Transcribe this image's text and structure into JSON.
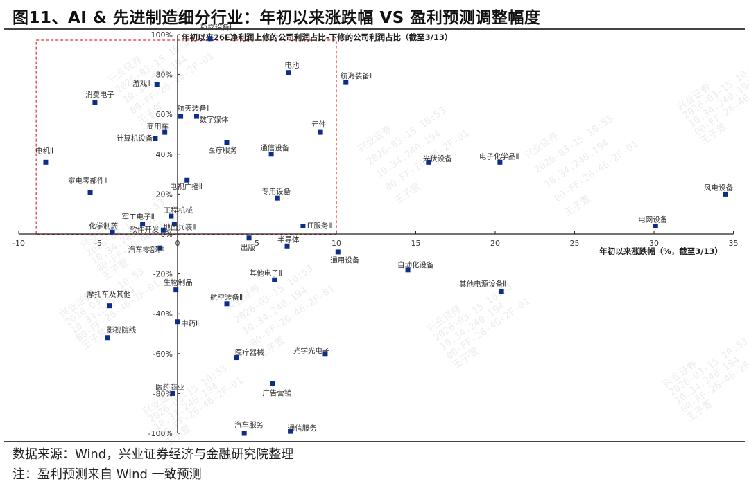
{
  "figure": {
    "title": "图11、AI & 先进制造细分行业：年初以来涨跌幅 VS 盈利预测调整幅度",
    "source": "数据来源：Wind，兴业证券经济与金融研究院整理",
    "note": "注：盈利预测来自 Wind 一致预测"
  },
  "colors": {
    "marker": "#0b2e8a",
    "axis": "#222222",
    "highlight_box": "#e03030"
  },
  "watermark": {
    "lines": [
      "兴业证券",
      "2026-03-15 10:53",
      "10.34.240.194",
      "00-FF-26-46-2F-01",
      "王子萱"
    ]
  },
  "chart_data": {
    "type": "scatter",
    "title": "年初以来26E净利润上修的公司利润占比-下修的公司利润占比（截至3/13）",
    "xlabel": "年初以来涨跌幅（%，截至3/13）",
    "ylabel": "年初以来26E净利润上修的公司利润占比-下修的公司利润占比（截至3/13）",
    "xlim": [
      -10,
      35
    ],
    "ylim": [
      -100,
      100
    ],
    "x_ticks": [
      -10,
      -5,
      0,
      5,
      10,
      15,
      20,
      25,
      30,
      35
    ],
    "y_ticks": [
      "100%",
      "80%",
      "60%",
      "40%",
      "20%",
      "0%",
      "-20%",
      "-40%",
      "-60%",
      "-80%",
      "-100%"
    ],
    "grid": false,
    "legend": "none",
    "highlight_region": {
      "x": [
        -8.9,
        10.0
      ],
      "y": [
        0,
        100
      ],
      "style": "red dashed rectangle"
    },
    "points": [
      {
        "label": "轨交设备Ⅱ",
        "x": 2.05,
        "y": 98
      },
      {
        "label": "电池",
        "x": 7.0,
        "y": 81
      },
      {
        "label": "航海装备Ⅱ",
        "x": 10.6,
        "y": 76
      },
      {
        "label": "游戏Ⅱ",
        "x": -1.3,
        "y": 75
      },
      {
        "label": "消费电子",
        "x": -5.2,
        "y": 66
      },
      {
        "label": "航天装备Ⅱ",
        "x": 0.2,
        "y": 59
      },
      {
        "label": "数字媒体",
        "x": 1.2,
        "y": 59
      },
      {
        "label": "商用车",
        "x": -0.8,
        "y": 51
      },
      {
        "label": "计算机设备",
        "x": -1.4,
        "y": 48
      },
      {
        "label": "元件",
        "x": 9.0,
        "y": 51
      },
      {
        "label": "医疗服务",
        "x": 3.1,
        "y": 46
      },
      {
        "label": "通信设备",
        "x": 5.9,
        "y": 40
      },
      {
        "label": "电机Ⅱ",
        "x": -8.3,
        "y": 36
      },
      {
        "label": "光伏设备",
        "x": 15.8,
        "y": 36
      },
      {
        "label": "电子化学品Ⅱ",
        "x": 20.3,
        "y": 36
      },
      {
        "label": "电视广播Ⅱ",
        "x": 0.6,
        "y": 27
      },
      {
        "label": "家电零部件Ⅱ",
        "x": -5.5,
        "y": 21
      },
      {
        "label": "风电设备",
        "x": 34.5,
        "y": 20
      },
      {
        "label": "专用设备",
        "x": 6.3,
        "y": 18
      },
      {
        "label": "工程机械",
        "x": -0.4,
        "y": 9
      },
      {
        "label": "地面兵装Ⅱ",
        "x": -0.2,
        "y": 5
      },
      {
        "label": "军工电子Ⅱ",
        "x": -2.2,
        "y": 5
      },
      {
        "label": "IT服务Ⅱ",
        "x": 7.9,
        "y": 4
      },
      {
        "label": "电网设备",
        "x": 30.1,
        "y": 4
      },
      {
        "label": "化学制药",
        "x": -4.1,
        "y": 1
      },
      {
        "label": "软件开发",
        "x": -0.9,
        "y": 2
      },
      {
        "label": "出版",
        "x": 4.5,
        "y": -2
      },
      {
        "label": "半导体",
        "x": 6.9,
        "y": -6
      },
      {
        "label": "汽车零部件",
        "x": -1.1,
        "y": -7
      },
      {
        "label": "通用设备",
        "x": 10.1,
        "y": -9
      },
      {
        "label": "自动化设备",
        "x": 14.5,
        "y": -18
      },
      {
        "label": "其他电子Ⅱ",
        "x": 6.1,
        "y": -23
      },
      {
        "label": "生物制品",
        "x": -0.1,
        "y": -28
      },
      {
        "label": "其他电源设备Ⅱ",
        "x": 20.4,
        "y": -29
      },
      {
        "label": "航空装备Ⅱ",
        "x": 3.1,
        "y": -35
      },
      {
        "label": "摩托车及其他",
        "x": -4.3,
        "y": -36
      },
      {
        "label": "中药Ⅱ",
        "x": 0.0,
        "y": -44
      },
      {
        "label": "影视院线",
        "x": -4.4,
        "y": -52
      },
      {
        "label": "光学光电子",
        "x": 9.3,
        "y": -60
      },
      {
        "label": "医疗器械",
        "x": 3.7,
        "y": -62
      },
      {
        "label": "广告营销",
        "x": 6.0,
        "y": -75
      },
      {
        "label": "医药商业",
        "x": -0.3,
        "y": -80
      },
      {
        "label": "汽车服务",
        "x": 4.2,
        "y": -100
      },
      {
        "label": "通信服务",
        "x": 7.1,
        "y": -99
      }
    ]
  },
  "label_layout": {
    "轨交设备Ⅱ": [
      -14,
      -13
    ],
    "电池": [
      -6,
      -7
    ],
    "航海装备Ⅱ": [
      -8,
      -6
    ],
    "游戏Ⅱ": [
      -35,
      2
    ],
    "消费电子": [
      -14,
      -8
    ],
    "航天装备Ⅱ": [
      -5,
      -8
    ],
    "数字媒体": [
      4,
      8
    ],
    "商用车": [
      -26,
      -5
    ],
    "计算机设备": [
      -56,
      3
    ],
    "元件": [
      -13,
      -8
    ],
    "医疗服务": [
      -27,
      15
    ],
    "通信设备": [
      -16,
      -6
    ],
    "电机Ⅱ": [
      -15,
      -13
    ],
    "光伏设备": [
      -8,
      -2
    ],
    "电子化学品Ⅱ": [
      -30,
      -5
    ],
    "电视广播Ⅱ": [
      -25,
      13
    ],
    "家电零部件Ⅱ": [
      -32,
      -13
    ],
    "风电设备": [
      -31,
      -6
    ],
    "专用设备": [
      -23,
      -6
    ],
    "工程机械": [
      -11,
      -5
    ],
    "地面兵装Ⅱ": [
      -16,
      8
    ],
    "军工电子Ⅱ": [
      -30,
      -7
    ],
    "IT服务Ⅱ": [
      6,
      3
    ],
    "电网设备": [
      -25,
      -6
    ],
    "化学制药": [
      -34,
      -5
    ],
    "软件开发": [
      -48,
      3
    ],
    "出版": [
      -12,
      17
    ],
    "半导体": [
      -14,
      -6
    ],
    "汽车零部件": [
      -46,
      6
    ],
    "通用设备": [
      -11,
      15
    ],
    "自动化设备": [
      -15,
      -4
    ],
    "其他电子Ⅱ": [
      -36,
      -6
    ],
    "生物制品": [
      -18,
      -7
    ],
    "其他电源设备Ⅱ": [
      -61,
      -8
    ],
    "航空装备Ⅱ": [
      -24,
      -6
    ],
    "摩托车及其他": [
      -32,
      -13
    ],
    "中药Ⅱ": [
      5,
      6
    ],
    "影视院线": [
      -1,
      -8
    ],
    "光学光电子": [
      -46,
      -1
    ],
    "医疗器械": [
      -2,
      -4
    ],
    "广告营销": [
      -15,
      17
    ],
    "医药商业": [
      -25,
      -6
    ],
    "汽车服务": [
      -14,
      -9
    ],
    "通信服务": [
      -4,
      -1
    ]
  }
}
